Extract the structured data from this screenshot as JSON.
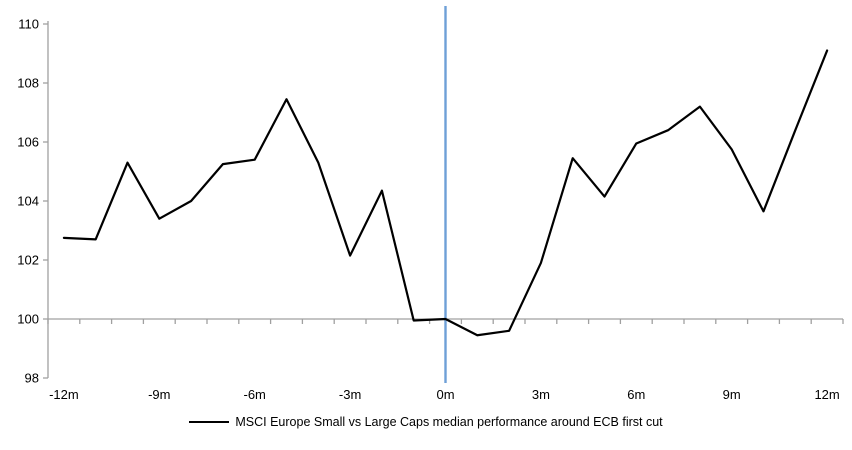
{
  "chart_data": {
    "type": "line",
    "categories": [
      "-12m",
      "-11m",
      "-10m",
      "-9m",
      "-8m",
      "-7m",
      "-6m",
      "-5m",
      "-4m",
      "-3m",
      "-2m",
      "-1m",
      "0m",
      "1m",
      "2m",
      "3m",
      "4m",
      "5m",
      "6m",
      "7m",
      "8m",
      "9m",
      "10m",
      "11m",
      "12m"
    ],
    "x": [
      -12,
      -11,
      -10,
      -9,
      -8,
      -7,
      -6,
      -5,
      -4,
      -3,
      -2,
      -1,
      0,
      1,
      2,
      3,
      4,
      5,
      6,
      7,
      8,
      9,
      10,
      11,
      12
    ],
    "series": [
      {
        "name": "MSCI Europe Small vs Large Caps median performance around ECB first cut",
        "color": "#000000",
        "values": [
          102.75,
          102.7,
          105.3,
          103.4,
          104.0,
          105.25,
          105.4,
          107.45,
          105.3,
          102.15,
          104.35,
          99.95,
          100.0,
          99.45,
          99.6,
          101.9,
          105.45,
          104.15,
          105.95,
          106.4,
          107.2,
          105.75,
          103.65,
          106.4,
          109.1
        ]
      }
    ],
    "title": "",
    "xlabel": "",
    "ylabel": "",
    "ylim": [
      98,
      110
    ],
    "yticks": [
      98,
      100,
      102,
      104,
      106,
      108,
      110
    ],
    "xtick_labels": [
      "-12m",
      "-9m",
      "-6m",
      "-3m",
      "0m",
      "3m",
      "6m",
      "9m",
      "12m"
    ],
    "xtick_months": [
      -12,
      -9,
      -6,
      -3,
      0,
      3,
      6,
      9,
      12
    ],
    "grid": "off",
    "legend_position": "bottom",
    "baseline_value": 100,
    "reference_line": {
      "at_month": 0,
      "color": "#6EA0D7"
    },
    "axis_color": "#A0A0A0",
    "text_color": "#000000"
  },
  "legend": {
    "label": "MSCI Europe Small vs Large Caps median performance around ECB first cut"
  }
}
